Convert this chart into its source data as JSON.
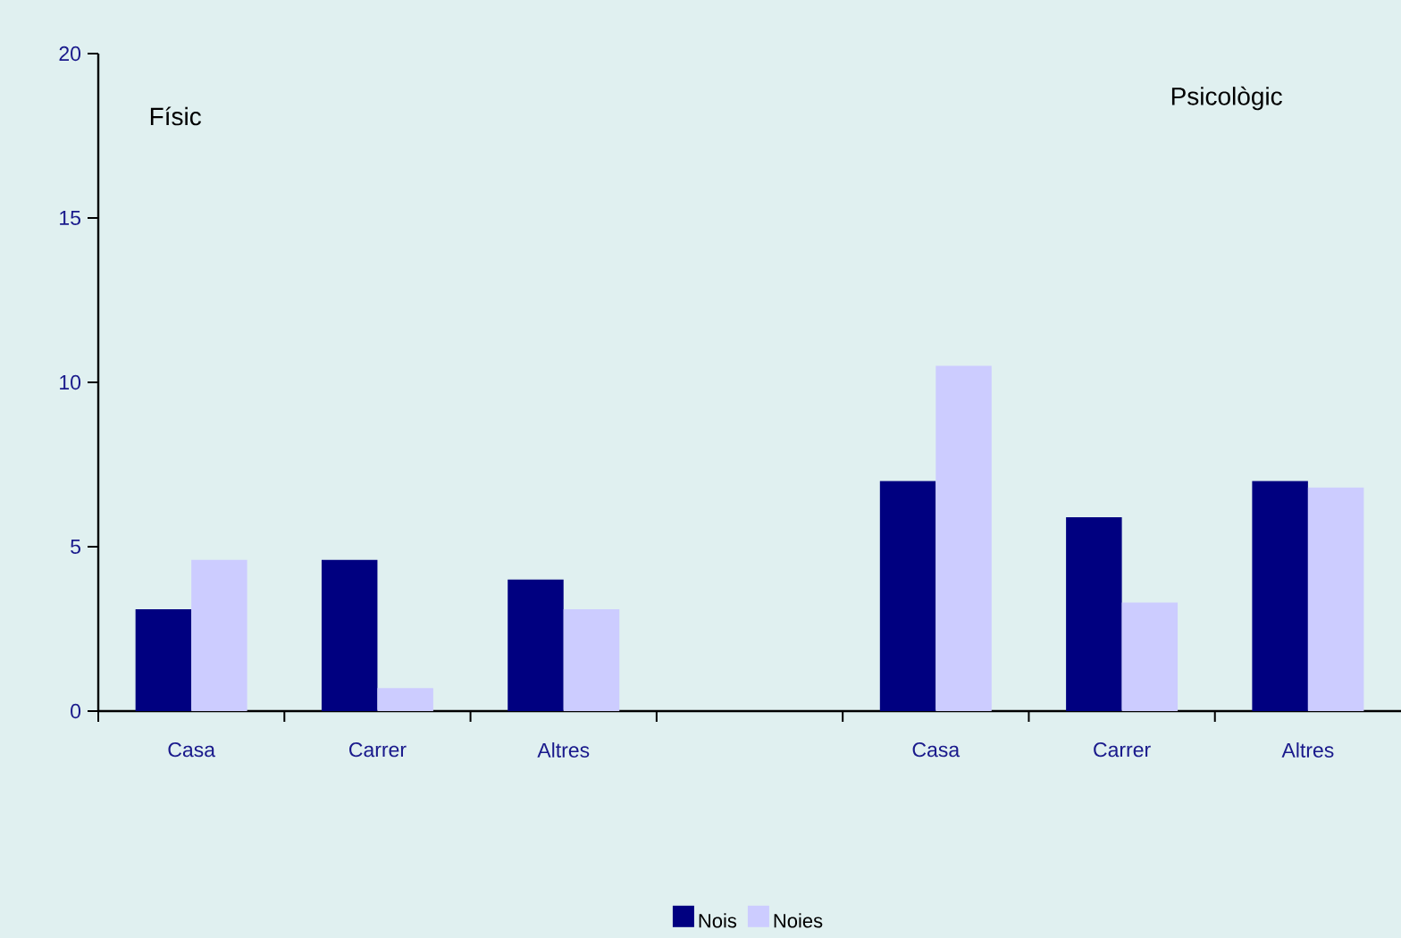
{
  "chart_data": {
    "type": "bar",
    "categories": [
      "Casa",
      "Carrer",
      "Altres",
      null,
      "Casa",
      "Carrer",
      "Altres"
    ],
    "series": [
      {
        "name": "Nois",
        "color": "#000080",
        "values": [
          3.1,
          4.6,
          4.0,
          null,
          7.0,
          5.9,
          7.0
        ]
      },
      {
        "name": "Noies",
        "color": "#ccccff",
        "values": [
          4.6,
          0.7,
          3.1,
          null,
          10.5,
          3.3,
          6.8
        ]
      }
    ],
    "ylim": [
      0,
      20
    ],
    "yticks": [
      0,
      5,
      10,
      15,
      20
    ],
    "annotations": [
      "Físic",
      "Psicològic"
    ],
    "legend": "bottom",
    "grid": false
  }
}
